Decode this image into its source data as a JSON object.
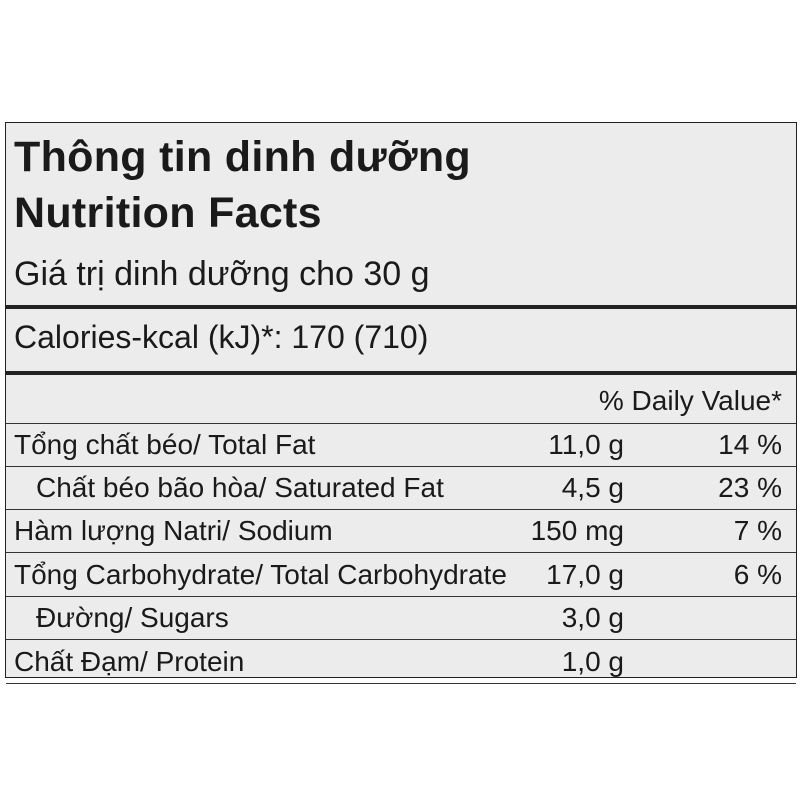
{
  "header": {
    "title_vi": "Thông tin dinh dưỡng",
    "title_en": "Nutrition Facts",
    "serving": "Giá trị dinh dưỡng cho 30 g"
  },
  "calories": "Calories-kcal (kJ)*: 170 (710)",
  "table": {
    "header": "% Daily Value*",
    "rows": [
      [
        "Tổng chất béo/ Total Fat",
        "11,0 g",
        "14 %"
      ],
      [
        "Chất béo bão hòa/ Saturated Fat",
        "4,5 g",
        "23 %"
      ],
      [
        "Hàm lượng Natri/ Sodium",
        "150 mg",
        "7 %"
      ],
      [
        "Tổng Carbohydrate/ Total Carbohydrate",
        "17,0 g",
        "6 %"
      ],
      [
        "Đường/ Sugars",
        "3,0 g"
      ],
      [
        "Chất Đạm/ Protein",
        "1,0 g"
      ]
    ]
  }
}
